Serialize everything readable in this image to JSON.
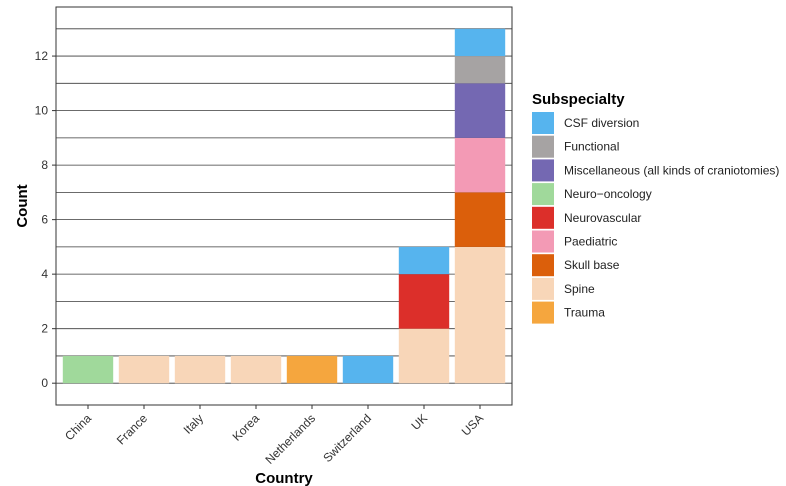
{
  "chart_data": {
    "type": "bar",
    "stacked": true,
    "xlabel": "Country",
    "ylabel": "Count",
    "ylim": [
      -0.8,
      13.8
    ],
    "yticks": [
      0,
      2,
      4,
      6,
      8,
      10,
      12
    ],
    "grid": true,
    "legend_title": "Subspecialty",
    "legend_position": "right",
    "categories": [
      "China",
      "France",
      "Italy",
      "Korea",
      "Netherlands",
      "Switzerland",
      "UK",
      "USA"
    ],
    "series": [
      {
        "name": "Spine",
        "color": "#F8D6B8",
        "values": [
          0,
          1,
          1,
          1,
          0,
          0,
          2,
          5
        ]
      },
      {
        "name": "Neuro−oncology",
        "color": "#A0D99B",
        "values": [
          1,
          0,
          0,
          0,
          0,
          0,
          0,
          0
        ]
      },
      {
        "name": "Trauma",
        "color": "#F5A63E",
        "values": [
          0,
          0,
          0,
          0,
          1,
          0,
          0,
          0
        ]
      },
      {
        "name": "Neurovascular",
        "color": "#DC2F2A",
        "values": [
          0,
          0,
          0,
          0,
          0,
          0,
          2,
          0
        ]
      },
      {
        "name": "Skull base",
        "color": "#DB5F0B",
        "values": [
          0,
          0,
          0,
          0,
          0,
          0,
          0,
          2
        ]
      },
      {
        "name": "Paediatric",
        "color": "#F39AB5",
        "values": [
          0,
          0,
          0,
          0,
          0,
          0,
          0,
          2
        ]
      },
      {
        "name": "Miscellaneous (all kinds of craniotomies)",
        "color": "#7468B2",
        "values": [
          0,
          0,
          0,
          0,
          0,
          0,
          0,
          2
        ]
      },
      {
        "name": "Functional",
        "color": "#A6A3A3",
        "values": [
          0,
          0,
          0,
          0,
          0,
          0,
          0,
          1
        ]
      },
      {
        "name": "CSF diversion",
        "color": "#56B4EE",
        "values": [
          0,
          0,
          0,
          0,
          0,
          1,
          1,
          1
        ]
      }
    ],
    "legend_order": [
      "CSF diversion",
      "Functional",
      "Miscellaneous (all kinds of craniotomies)",
      "Neuro−oncology",
      "Neurovascular",
      "Paediatric",
      "Skull base",
      "Spine",
      "Trauma"
    ]
  }
}
